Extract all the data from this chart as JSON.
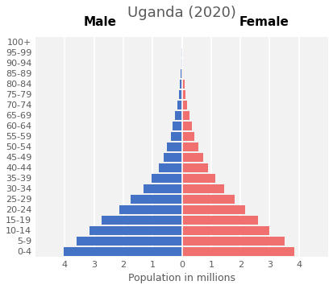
{
  "title": "Uganda (2020)",
  "age_groups": [
    "0-4",
    "5-9",
    "10-14",
    "15-19",
    "20-24",
    "25-29",
    "30-34",
    "35-39",
    "40-44",
    "45-49",
    "50-54",
    "55-59",
    "60-64",
    "65-69",
    "70-74",
    "75-79",
    "80-84",
    "85-89",
    "90-94",
    "95-99",
    "100+"
  ],
  "male": [
    4.05,
    3.6,
    3.15,
    2.75,
    2.15,
    1.75,
    1.3,
    1.05,
    0.78,
    0.62,
    0.52,
    0.38,
    0.32,
    0.25,
    0.16,
    0.1,
    0.07,
    0.035,
    0.012,
    0.004,
    0.001
  ],
  "female": [
    3.85,
    3.5,
    3.0,
    2.6,
    2.15,
    1.8,
    1.45,
    1.15,
    0.9,
    0.72,
    0.57,
    0.42,
    0.35,
    0.27,
    0.18,
    0.11,
    0.08,
    0.045,
    0.018,
    0.005,
    0.001
  ],
  "male_color": "#4472C4",
  "female_color": "#F07070",
  "xlim": 5,
  "xlabel": "Population in millions",
  "male_label": "Male",
  "female_label": "Female",
  "bg_color": "#FFFFFF",
  "plot_bg_color": "#F2F2F2",
  "title_fontsize": 13,
  "gender_label_fontsize": 11,
  "axis_label_fontsize": 9,
  "tick_fontsize": 8,
  "grid_color": "#FFFFFF",
  "xticks": [
    -4,
    -3,
    -2,
    -1,
    0,
    1,
    2,
    3,
    4
  ],
  "xtick_labels": [
    "4",
    "3",
    "2",
    "1",
    "0",
    "1",
    "2",
    "3",
    "4"
  ]
}
